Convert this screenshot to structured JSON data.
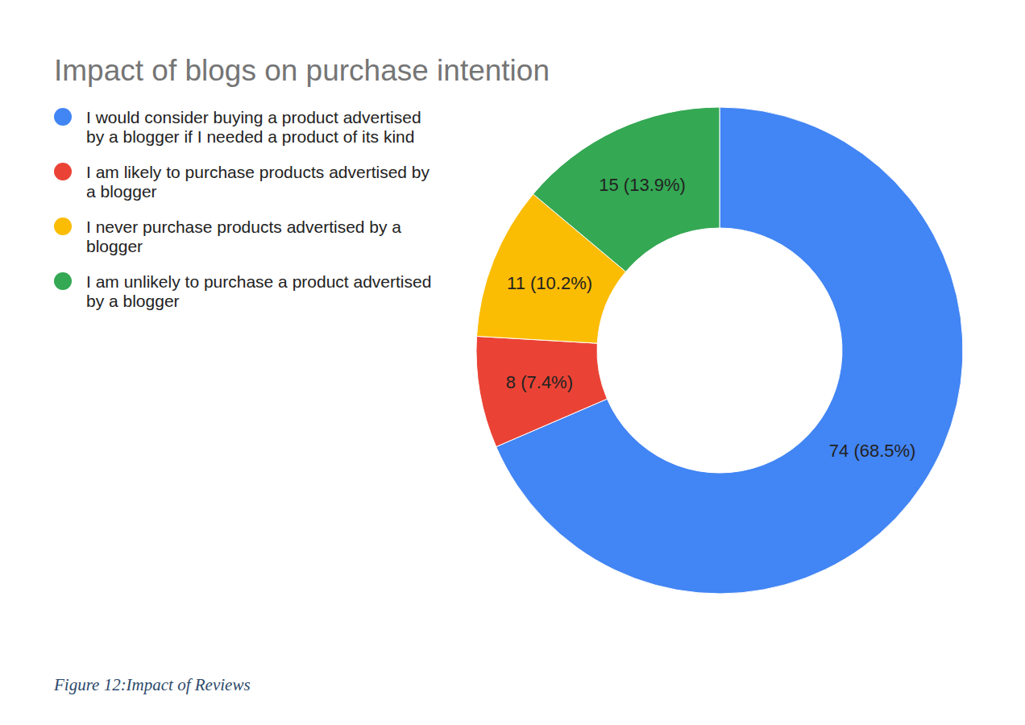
{
  "chart_data": {
    "type": "donut",
    "title": "Impact of blogs on purchase intention",
    "caption": "Figure 12:Impact of Reviews",
    "categories": [
      "I would consider buying a product advertised by a blogger if I needed a product of its kind",
      "I am likely to purchase products advertised by a blogger",
      "I never purchase products advertised by a blogger",
      "I am unlikely to purchase a product advertised by a blogger"
    ],
    "values": [
      74,
      8,
      11,
      15
    ],
    "value_labels": [
      "74 (68.5%)",
      "8 (7.4%)",
      "11 (10.2%)",
      "15 (13.9%)"
    ],
    "colors": [
      "#4285f4",
      "#ea4335",
      "#fbbc04",
      "#34a853"
    ],
    "data_labels": true,
    "legend": "top-left"
  }
}
